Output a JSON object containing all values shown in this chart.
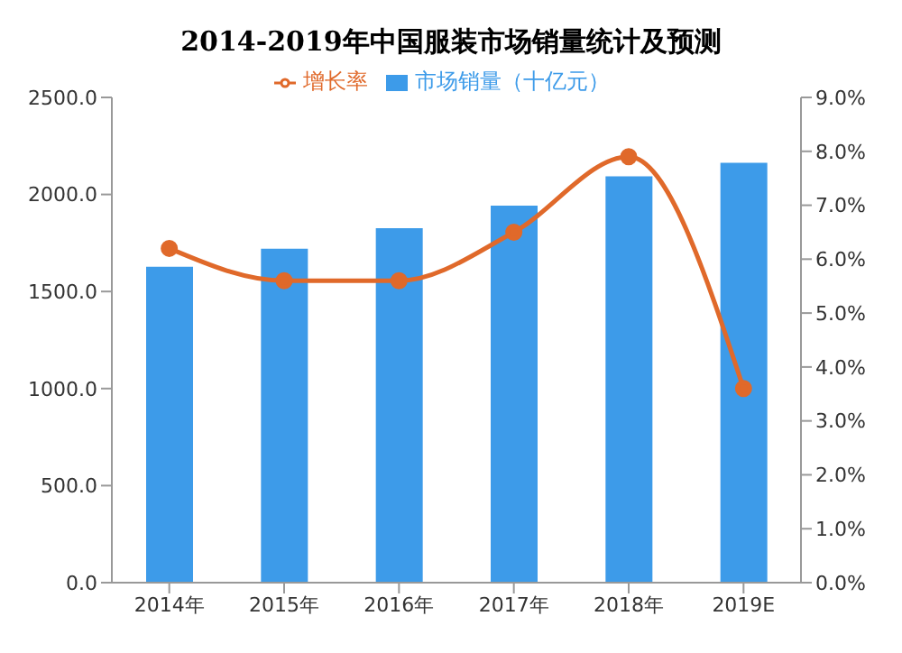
{
  "chart_data": {
    "type": "bar",
    "title": "2014-2019年中国服装市场销量统计及预测",
    "categories": [
      "2014年",
      "2015年",
      "2016年",
      "2017年",
      "2018年",
      "2019E"
    ],
    "series": [
      {
        "name": "市场销量（十亿元）",
        "color": "#3d9be9",
        "values": [
          1628,
          1721,
          1826,
          1942,
          2093,
          2163
        ]
      },
      {
        "name": "增长率",
        "type": "line",
        "axis": "y2",
        "color": "#e0692a",
        "values": [
          6.2,
          5.6,
          5.6,
          6.5,
          7.9,
          3.6
        ],
        "marker": "circle"
      }
    ],
    "ylim": [
      0,
      2500
    ],
    "yticks": [
      {
        "value": 0,
        "label": "0.0"
      },
      {
        "value": 500,
        "label": "500.0"
      },
      {
        "value": 1000,
        "label": "1000.0"
      },
      {
        "value": 1500,
        "label": "1500.0"
      },
      {
        "value": 2000,
        "label": "2000.0"
      },
      {
        "value": 2500,
        "label": "2500.0"
      }
    ],
    "y2lim": [
      0,
      9
    ],
    "y2ticks": [
      {
        "value": 0,
        "label": "0.0%"
      },
      {
        "value": 1,
        "label": "1.0%"
      },
      {
        "value": 2,
        "label": "2.0%"
      },
      {
        "value": 3,
        "label": "3.0%"
      },
      {
        "value": 4,
        "label": "4.0%"
      },
      {
        "value": 5,
        "label": "5.0%"
      },
      {
        "value": 6,
        "label": "6.0%"
      },
      {
        "value": 7,
        "label": "7.0%"
      },
      {
        "value": 8,
        "label": "8.0%"
      },
      {
        "value": 9,
        "label": "9.0%"
      }
    ],
    "legend": "top",
    "grid": false
  }
}
